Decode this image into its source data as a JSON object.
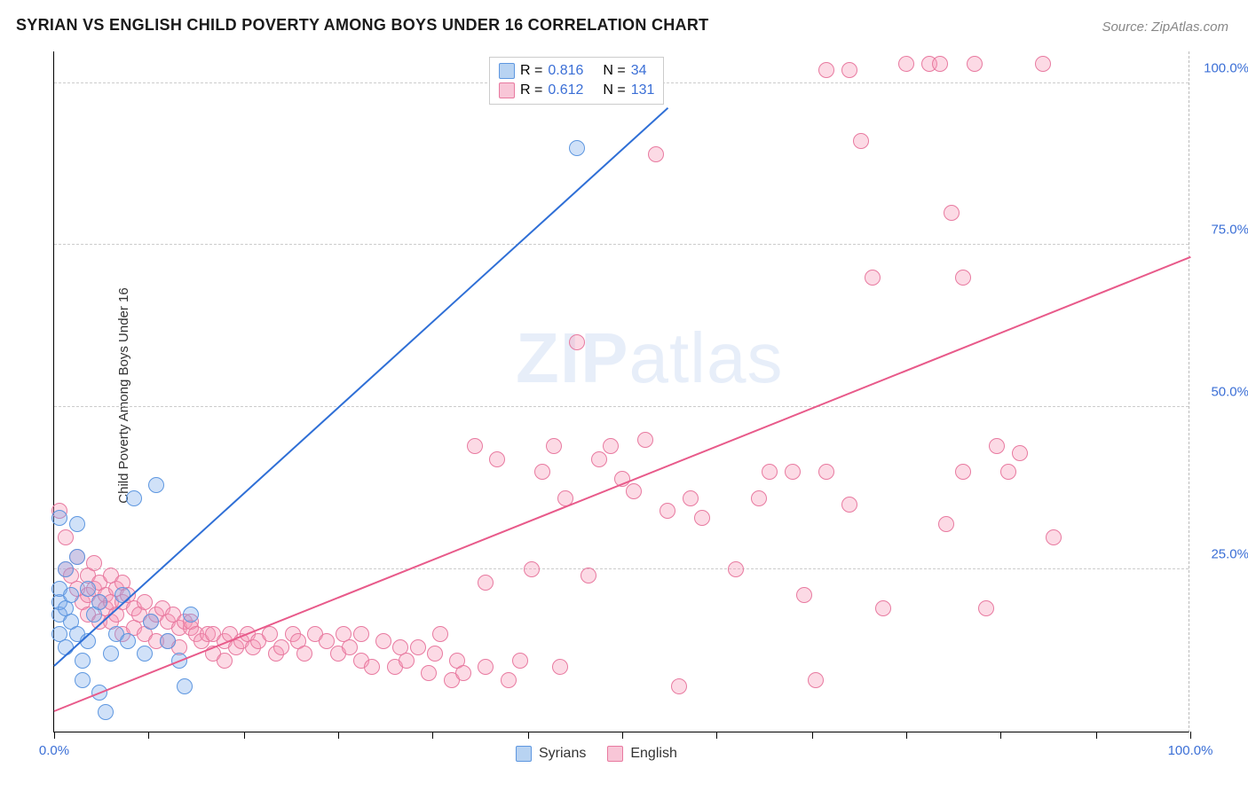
{
  "title": "SYRIAN VS ENGLISH CHILD POVERTY AMONG BOYS UNDER 16 CORRELATION CHART",
  "source": "Source: ZipAtlas.com",
  "ylabel": "Child Poverty Among Boys Under 16",
  "watermark_a": "ZIP",
  "watermark_b": "atlas",
  "chart": {
    "type": "scatter",
    "xlim": [
      0,
      100
    ],
    "ylim": [
      0,
      105
    ],
    "y_ticks": [
      25,
      50,
      75,
      100
    ],
    "y_tick_labels": [
      "25.0%",
      "50.0%",
      "75.0%",
      "100.0%"
    ],
    "x_tick_positions": [
      0,
      8.3,
      16.7,
      25,
      33.3,
      41.7,
      50,
      58.3,
      66.7,
      75,
      83.3,
      91.7,
      100
    ],
    "x_tick_labels": {
      "0": "0.0%",
      "100": "100.0%"
    },
    "background_color": "#ffffff",
    "grid_color": "#cccccc",
    "axis_color": "#000000",
    "tick_label_color": "#3b6fd6",
    "marker_radius": 9,
    "marker_stroke_width": 1.5,
    "trendline_width": 2,
    "series": [
      {
        "name": "Syrians",
        "fill": "rgba(120,170,235,0.35)",
        "stroke": "#5e97e0",
        "line_color": "#2f6fd6",
        "swatch_fill": "#b8d3f2",
        "swatch_stroke": "#5e97e0",
        "R": "0.816",
        "N": "34",
        "trend": {
          "x1": 0,
          "y1": 10,
          "x2": 54,
          "y2": 96
        },
        "points": [
          [
            0.5,
            33
          ],
          [
            0.5,
            18
          ],
          [
            0.5,
            15
          ],
          [
            0.5,
            20
          ],
          [
            0.5,
            22
          ],
          [
            1,
            25
          ],
          [
            1,
            19
          ],
          [
            1,
            13
          ],
          [
            1.5,
            17
          ],
          [
            1.5,
            21
          ],
          [
            2,
            27
          ],
          [
            2,
            32
          ],
          [
            2,
            15
          ],
          [
            2.5,
            11
          ],
          [
            2.5,
            8
          ],
          [
            3,
            22
          ],
          [
            3,
            14
          ],
          [
            3.5,
            18
          ],
          [
            4,
            20
          ],
          [
            4,
            6
          ],
          [
            4.5,
            3
          ],
          [
            5,
            12
          ],
          [
            5.5,
            15
          ],
          [
            6,
            21
          ],
          [
            6.5,
            14
          ],
          [
            7,
            36
          ],
          [
            8,
            12
          ],
          [
            8.5,
            17
          ],
          [
            9,
            38
          ],
          [
            10,
            14
          ],
          [
            11,
            11
          ],
          [
            11.5,
            7
          ],
          [
            12,
            18
          ],
          [
            46,
            90
          ]
        ]
      },
      {
        "name": "English",
        "fill": "rgba(245,150,180,0.35)",
        "stroke": "#e87aa0",
        "line_color": "#e85a8a",
        "swatch_fill": "#f8c6d7",
        "swatch_stroke": "#e87aa0",
        "R": "0.612",
        "N": "131",
        "trend": {
          "x1": 0,
          "y1": 3,
          "x2": 100,
          "y2": 73
        },
        "points": [
          [
            0.5,
            34
          ],
          [
            1,
            30
          ],
          [
            1,
            25
          ],
          [
            1.5,
            24
          ],
          [
            2,
            27
          ],
          [
            2,
            22
          ],
          [
            2.5,
            20
          ],
          [
            3,
            24
          ],
          [
            3,
            21
          ],
          [
            3,
            18
          ],
          [
            3.5,
            26
          ],
          [
            3.5,
            22
          ],
          [
            4,
            23
          ],
          [
            4,
            20
          ],
          [
            4,
            17
          ],
          [
            4.5,
            21
          ],
          [
            4.5,
            19
          ],
          [
            5,
            24
          ],
          [
            5,
            20
          ],
          [
            5,
            17
          ],
          [
            5.5,
            22
          ],
          [
            5.5,
            18
          ],
          [
            6,
            23
          ],
          [
            6,
            20
          ],
          [
            6,
            15
          ],
          [
            6.5,
            21
          ],
          [
            7,
            19
          ],
          [
            7,
            16
          ],
          [
            7.5,
            18
          ],
          [
            8,
            20
          ],
          [
            8,
            15
          ],
          [
            8.5,
            17
          ],
          [
            9,
            18
          ],
          [
            9,
            14
          ],
          [
            9.5,
            19
          ],
          [
            10,
            17
          ],
          [
            10,
            14
          ],
          [
            10.5,
            18
          ],
          [
            11,
            16
          ],
          [
            11,
            13
          ],
          [
            11.5,
            17
          ],
          [
            12,
            16
          ],
          [
            12,
            17
          ],
          [
            12.5,
            15
          ],
          [
            13,
            14
          ],
          [
            13.5,
            15
          ],
          [
            14,
            15
          ],
          [
            14,
            12
          ],
          [
            15,
            14
          ],
          [
            15,
            11
          ],
          [
            15.5,
            15
          ],
          [
            16,
            13
          ],
          [
            16.5,
            14
          ],
          [
            17,
            15
          ],
          [
            17.5,
            13
          ],
          [
            18,
            14
          ],
          [
            19,
            15
          ],
          [
            19.5,
            12
          ],
          [
            20,
            13
          ],
          [
            21,
            15
          ],
          [
            21.5,
            14
          ],
          [
            22,
            12
          ],
          [
            23,
            15
          ],
          [
            24,
            14
          ],
          [
            25,
            12
          ],
          [
            25.5,
            15
          ],
          [
            26,
            13
          ],
          [
            27,
            15
          ],
          [
            27,
            11
          ],
          [
            28,
            10
          ],
          [
            29,
            14
          ],
          [
            30,
            10
          ],
          [
            30.5,
            13
          ],
          [
            31,
            11
          ],
          [
            32,
            13
          ],
          [
            33,
            9
          ],
          [
            33.5,
            12
          ],
          [
            34,
            15
          ],
          [
            35,
            8
          ],
          [
            35.5,
            11
          ],
          [
            36,
            9
          ],
          [
            37,
            44
          ],
          [
            38,
            23
          ],
          [
            38,
            10
          ],
          [
            39,
            42
          ],
          [
            40,
            8
          ],
          [
            41,
            11
          ],
          [
            42,
            25
          ],
          [
            43,
            40
          ],
          [
            44,
            44
          ],
          [
            44.5,
            10
          ],
          [
            45,
            36
          ],
          [
            46,
            60
          ],
          [
            47,
            24
          ],
          [
            48,
            42
          ],
          [
            49,
            44
          ],
          [
            50,
            39
          ],
          [
            51,
            37
          ],
          [
            52,
            45
          ],
          [
            53,
            89
          ],
          [
            54,
            34
          ],
          [
            55,
            7
          ],
          [
            56,
            36
          ],
          [
            57,
            33
          ],
          [
            60,
            25
          ],
          [
            62,
            36
          ],
          [
            63,
            40
          ],
          [
            65,
            40
          ],
          [
            66,
            21
          ],
          [
            67,
            8
          ],
          [
            68,
            40
          ],
          [
            70,
            35
          ],
          [
            71,
            91
          ],
          [
            72,
            70
          ],
          [
            73,
            19
          ],
          [
            75,
            103
          ],
          [
            77,
            103
          ],
          [
            78,
            103
          ],
          [
            78.5,
            32
          ],
          [
            79,
            80
          ],
          [
            80,
            40
          ],
          [
            80,
            70
          ],
          [
            81,
            103
          ],
          [
            82,
            19
          ],
          [
            83,
            44
          ],
          [
            84,
            40
          ],
          [
            85,
            43
          ],
          [
            87,
            103
          ],
          [
            88,
            30
          ],
          [
            68,
            102
          ],
          [
            70,
            102
          ]
        ]
      }
    ]
  },
  "legend_top": {
    "r_label": "R =",
    "n_label": "N ="
  },
  "legend_bottom": {
    "items": [
      "Syrians",
      "English"
    ]
  }
}
